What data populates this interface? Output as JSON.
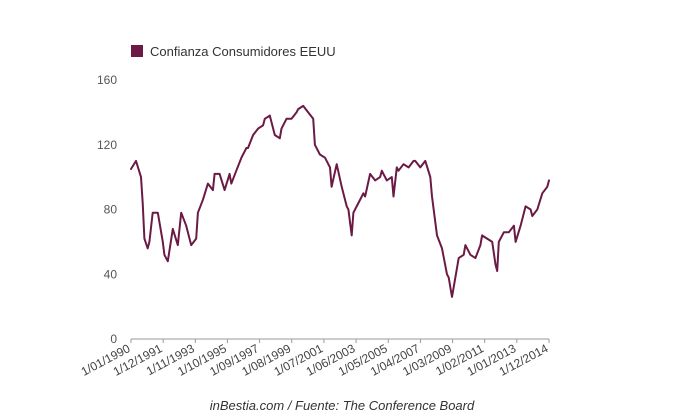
{
  "chart_data": {
    "type": "line",
    "title": "",
    "xlabel": "",
    "ylabel": "",
    "ylim": [
      0,
      160
    ],
    "yticks": [
      0,
      40,
      80,
      120,
      160
    ],
    "grid": false,
    "legend_position": "top-left",
    "color": "#6b1a45",
    "xticks": [
      "1/01/1990",
      "1/12/1991",
      "1/11/1993",
      "1/10/1995",
      "1/09/1997",
      "1/08/1999",
      "1/07/2001",
      "1/06/2003",
      "1/05/2005",
      "1/04/2007",
      "1/03/2009",
      "1/02/2011",
      "1/01/2013",
      "1/12/2014"
    ],
    "series": [
      {
        "name": "Confianza Consumidores EEUU",
        "x": [
          1990.0,
          1990.3,
          1990.6,
          1990.7,
          1990.8,
          1991.0,
          1991.1,
          1991.3,
          1991.6,
          1991.9,
          1992.0,
          1992.2,
          1992.5,
          1992.8,
          1993.0,
          1993.3,
          1993.6,
          1993.9,
          1994.0,
          1994.3,
          1994.6,
          1994.9,
          1995.0,
          1995.3,
          1995.6,
          1995.9,
          1996.0,
          1996.3,
          1996.6,
          1996.9,
          1997.0,
          1997.3,
          1997.6,
          1997.9,
          1998.0,
          1998.3,
          1998.6,
          1998.9,
          1999.0,
          1999.3,
          1999.6,
          1999.9,
          2000.0,
          2000.3,
          2000.6,
          2000.9,
          2001.0,
          2001.3,
          2001.6,
          2001.9,
          2002.0,
          2002.3,
          2002.6,
          2002.9,
          2003.0,
          2003.2,
          2003.3,
          2003.6,
          2003.9,
          2004.0,
          2004.3,
          2004.6,
          2004.9,
          2005.0,
          2005.3,
          2005.6,
          2005.7,
          2005.9,
          2006.0,
          2006.3,
          2006.6,
          2006.9,
          2007.0,
          2007.3,
          2007.6,
          2007.9,
          2008.0,
          2008.3,
          2008.6,
          2008.9,
          2009.0,
          2009.2,
          2009.3,
          2009.6,
          2009.9,
          2010.0,
          2010.3,
          2010.6,
          2010.9,
          2011.0,
          2011.3,
          2011.6,
          2011.8,
          2011.9,
          2012.0,
          2012.3,
          2012.6,
          2012.9,
          2013.0,
          2013.3,
          2013.6,
          2013.9,
          2014.0,
          2014.3,
          2014.6,
          2014.9,
          2015.0
        ],
        "values": [
          105,
          110,
          100,
          84,
          62,
          56,
          60,
          78,
          78,
          60,
          52,
          48,
          68,
          58,
          78,
          70,
          58,
          62,
          78,
          86,
          96,
          92,
          102,
          102,
          92,
          102,
          96,
          104,
          112,
          118,
          118,
          126,
          130,
          132,
          136,
          138,
          126,
          124,
          130,
          136,
          136,
          140,
          142,
          144,
          140,
          136,
          120,
          114,
          112,
          106,
          94,
          108,
          94,
          82,
          80,
          64,
          78,
          84,
          90,
          88,
          102,
          98,
          100,
          104,
          98,
          100,
          88,
          106,
          104,
          108,
          106,
          110,
          110,
          106,
          110,
          100,
          88,
          64,
          56,
          40,
          38,
          26,
          32,
          50,
          52,
          58,
          52,
          50,
          58,
          64,
          62,
          60,
          46,
          42,
          60,
          66,
          66,
          70,
          60,
          70,
          82,
          80,
          76,
          80,
          90,
          94,
          98
        ]
      }
    ]
  },
  "legend": {
    "label": "Confianza Consumidores EEUU"
  },
  "footer": {
    "source": "inBestia.com / Fuente: The Conference Board"
  }
}
